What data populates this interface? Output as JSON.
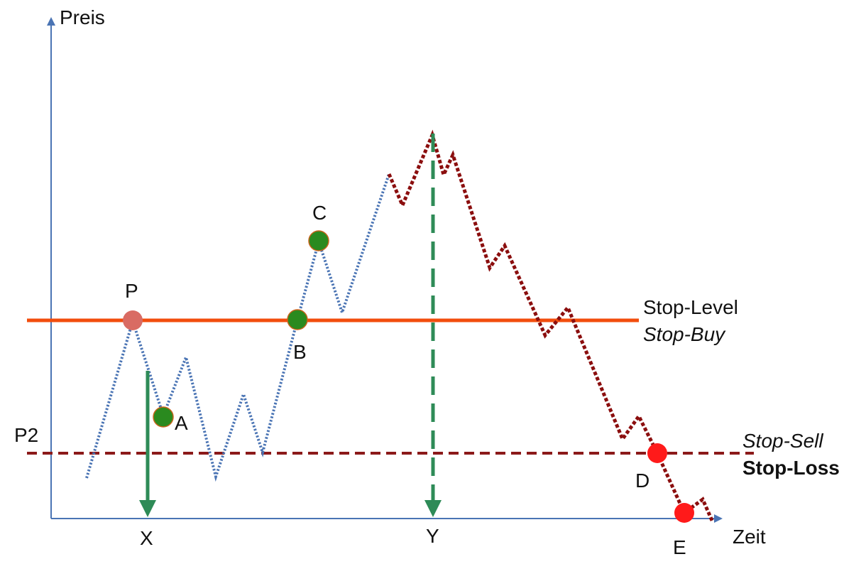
{
  "axes": {
    "y_label": "Preis",
    "x_label": "Zeit"
  },
  "levels": {
    "stop_level_label": "Stop-Level",
    "stop_buy_label": "Stop-Buy",
    "stop_sell_label": "Stop-Sell",
    "stop_loss_label": "Stop-Loss",
    "p2_label": "P2"
  },
  "points": {
    "p": "P",
    "a": "A",
    "b": "B",
    "c": "C",
    "d": "D",
    "e": "E"
  },
  "markers": {
    "x": "X",
    "y": "Y"
  },
  "colors": {
    "axis": "#4a74b4",
    "stop_level": "#f24d0d",
    "stop_loss": "#8b1a1a",
    "price_before": "#4a74b4",
    "price_after": "#8b0e0e",
    "green_point": "#2a8a1f",
    "red_point": "#ff1a1a",
    "p_point": "#d96b63",
    "green_arrow": "#2e8b57"
  }
}
